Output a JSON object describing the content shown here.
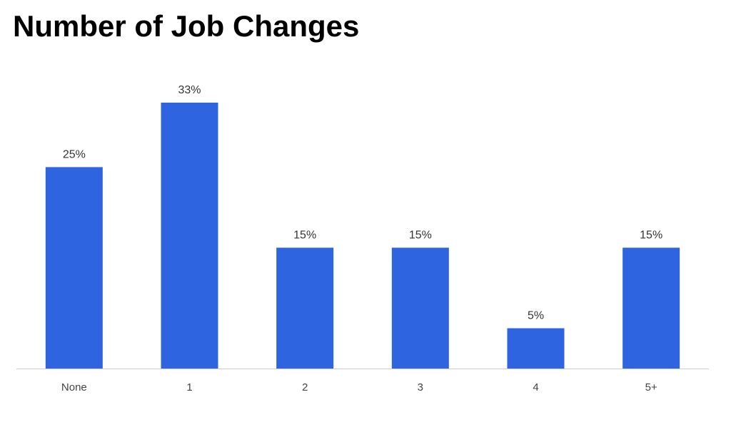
{
  "chart_data": {
    "type": "bar",
    "title": "Number of Job Changes",
    "categories": [
      "None",
      "1",
      "2",
      "3",
      "4",
      "5+"
    ],
    "values": [
      25,
      33,
      15,
      15,
      5,
      15
    ],
    "value_labels": [
      "25%",
      "33%",
      "15%",
      "15%",
      "5%",
      "15%"
    ],
    "color": "#2e64e0"
  }
}
